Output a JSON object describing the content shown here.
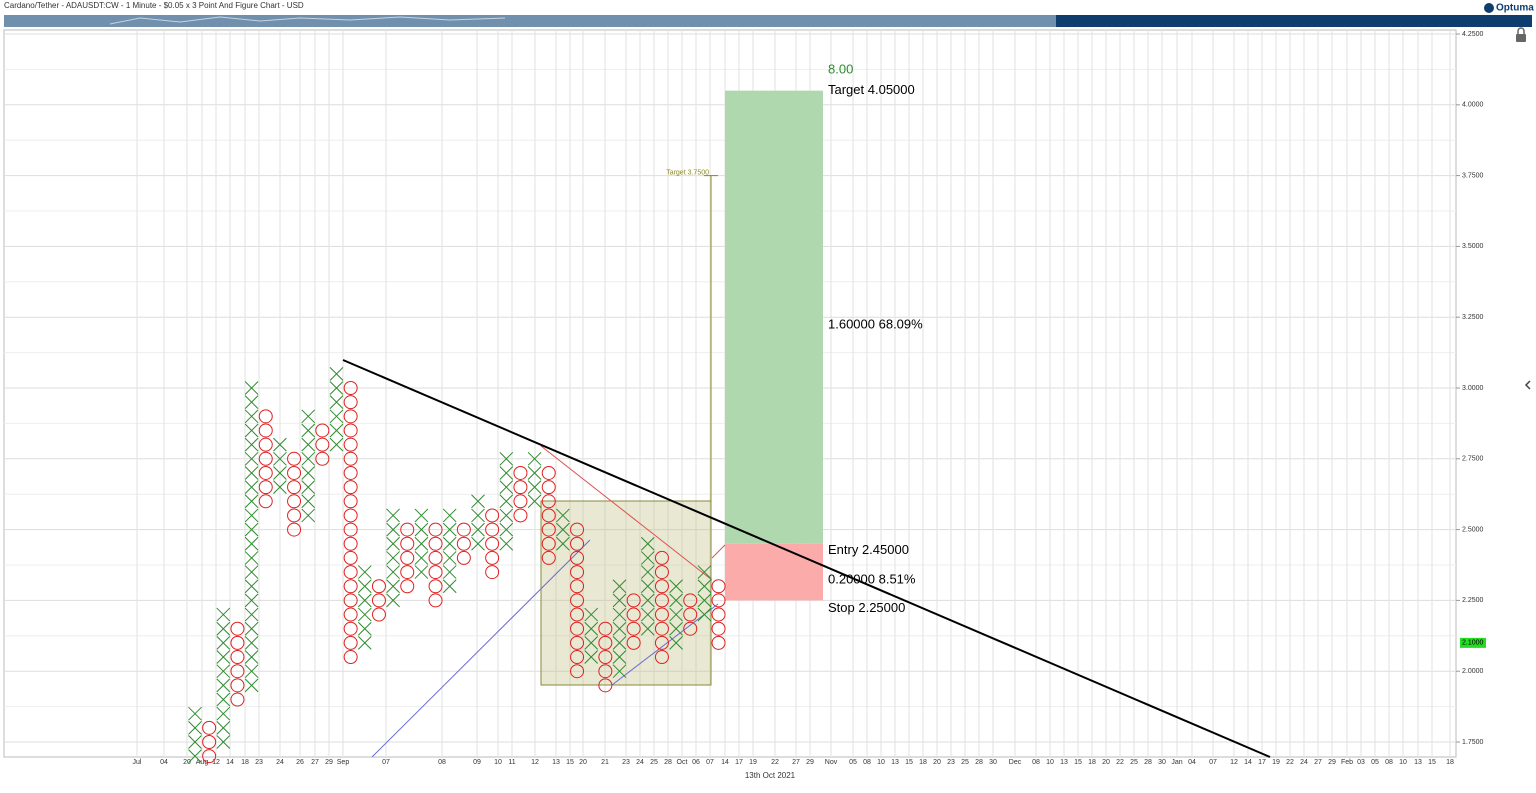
{
  "header": {
    "title": "Cardano/Tether - ADAUSDT:CW - 1 Minute - $0.05 x 3 Point And Figure Chart - USD",
    "brand": "Optuma"
  },
  "chart_data": {
    "type": "point_and_figure",
    "box_size": 0.05,
    "ylim": [
      1.7,
      4.3
    ],
    "yticks": [
      {
        "value": 1.75,
        "label": "1.7500"
      },
      {
        "value": 2.0,
        "label": "2.0000"
      },
      {
        "value": 2.25,
        "label": "2.2500"
      },
      {
        "value": 2.5,
        "label": "2.5000"
      },
      {
        "value": 2.75,
        "label": "2.7500"
      },
      {
        "value": 3.0,
        "label": "3.0000"
      },
      {
        "value": 3.25,
        "label": "3.2500"
      },
      {
        "value": 3.5,
        "label": "3.5000"
      },
      {
        "value": 3.75,
        "label": "3.7500"
      },
      {
        "value": 4.0,
        "label": "4.0000"
      },
      {
        "value": 4.25,
        "label": "4.2500"
      }
    ],
    "grid": true,
    "x_labels": [
      "Jul",
      "04",
      "20",
      "Aug",
      "12",
      "14",
      "18",
      "23",
      "24",
      "26",
      "27",
      "29",
      "Sep",
      "07",
      "08",
      "09",
      "10",
      "11",
      "12",
      "13",
      "15",
      "20",
      "21",
      "23",
      "24",
      "25",
      "28",
      "Oct",
      "06",
      "07",
      "14",
      "17",
      "19",
      "22",
      "27",
      "29",
      "Nov",
      "05",
      "08",
      "10",
      "13",
      "15",
      "18",
      "20",
      "23",
      "25",
      "28",
      "30",
      "Dec",
      "08",
      "10",
      "13",
      "15",
      "18",
      "20",
      "22",
      "25",
      "28",
      "30",
      "Jan",
      "04",
      "07",
      "12",
      "14",
      "17",
      "19",
      "22",
      "24",
      "27",
      "29",
      "Feb",
      "03",
      "05",
      "08",
      "10",
      "13",
      "15",
      "18"
    ],
    "x_caption": "13th Oct 2021",
    "x_color": "#2e8b2e",
    "o_color": "#e02020",
    "columns": [
      {
        "rising": true,
        "low": 1.7,
        "high": 1.85
      },
      {
        "rising": false,
        "low": 1.7,
        "high": 1.8
      },
      {
        "rising": true,
        "low": 1.75,
        "high": 2.2
      },
      {
        "rising": false,
        "low": 1.9,
        "high": 2.15
      },
      {
        "rising": true,
        "low": 1.95,
        "high": 3.0
      },
      {
        "rising": false,
        "low": 2.6,
        "high": 2.9
      },
      {
        "rising": true,
        "low": 2.65,
        "high": 2.8
      },
      {
        "rising": false,
        "low": 2.5,
        "high": 2.75
      },
      {
        "rising": true,
        "low": 2.55,
        "high": 2.9
      },
      {
        "rising": false,
        "low": 2.75,
        "high": 2.85
      },
      {
        "rising": true,
        "low": 2.8,
        "high": 3.05
      },
      {
        "rising": false,
        "low": 2.05,
        "high": 3.0
      },
      {
        "rising": true,
        "low": 2.1,
        "high": 2.35
      },
      {
        "rising": false,
        "low": 2.2,
        "high": 2.3
      },
      {
        "rising": true,
        "low": 2.25,
        "high": 2.55
      },
      {
        "rising": false,
        "low": 2.3,
        "high": 2.5
      },
      {
        "rising": true,
        "low": 2.35,
        "high": 2.55
      },
      {
        "rising": false,
        "low": 2.25,
        "high": 2.5
      },
      {
        "rising": true,
        "low": 2.3,
        "high": 2.55
      },
      {
        "rising": false,
        "low": 2.4,
        "high": 2.5
      },
      {
        "rising": true,
        "low": 2.45,
        "high": 2.6
      },
      {
        "rising": false,
        "low": 2.35,
        "high": 2.55
      },
      {
        "rising": true,
        "low": 2.45,
        "high": 2.75
      },
      {
        "rising": false,
        "low": 2.55,
        "high": 2.7
      },
      {
        "rising": true,
        "low": 2.6,
        "high": 2.75
      },
      {
        "rising": false,
        "low": 2.4,
        "high": 2.7
      },
      {
        "rising": true,
        "low": 2.45,
        "high": 2.55
      },
      {
        "rising": false,
        "low": 2.0,
        "high": 2.5
      },
      {
        "rising": true,
        "low": 2.05,
        "high": 2.2
      },
      {
        "rising": false,
        "low": 1.95,
        "high": 2.15
      },
      {
        "rising": true,
        "low": 2.0,
        "high": 2.3
      },
      {
        "rising": false,
        "low": 2.1,
        "high": 2.25
      },
      {
        "rising": true,
        "low": 2.15,
        "high": 2.45
      },
      {
        "rising": false,
        "low": 2.05,
        "high": 2.4
      },
      {
        "rising": true,
        "low": 2.1,
        "high": 2.3
      },
      {
        "rising": false,
        "low": 2.15,
        "high": 2.25
      },
      {
        "rising": true,
        "low": 2.2,
        "high": 2.35
      },
      {
        "rising": false,
        "low": 2.1,
        "high": 2.3
      }
    ],
    "pattern_target": {
      "value": 3.75,
      "label": "Target 3.7500"
    },
    "trade": {
      "ratio": "8.00",
      "target": {
        "value": 4.05,
        "label": "Target  4.05000"
      },
      "reward": "1.60000  68.09%",
      "entry": {
        "value": 2.45,
        "label": "Entry  2.45000"
      },
      "risk": "0.20000  8.51%",
      "stop": {
        "value": 2.25,
        "label": "Stop  2.25000"
      }
    },
    "last_price": {
      "value": 2.1,
      "label": "2.1000"
    }
  }
}
